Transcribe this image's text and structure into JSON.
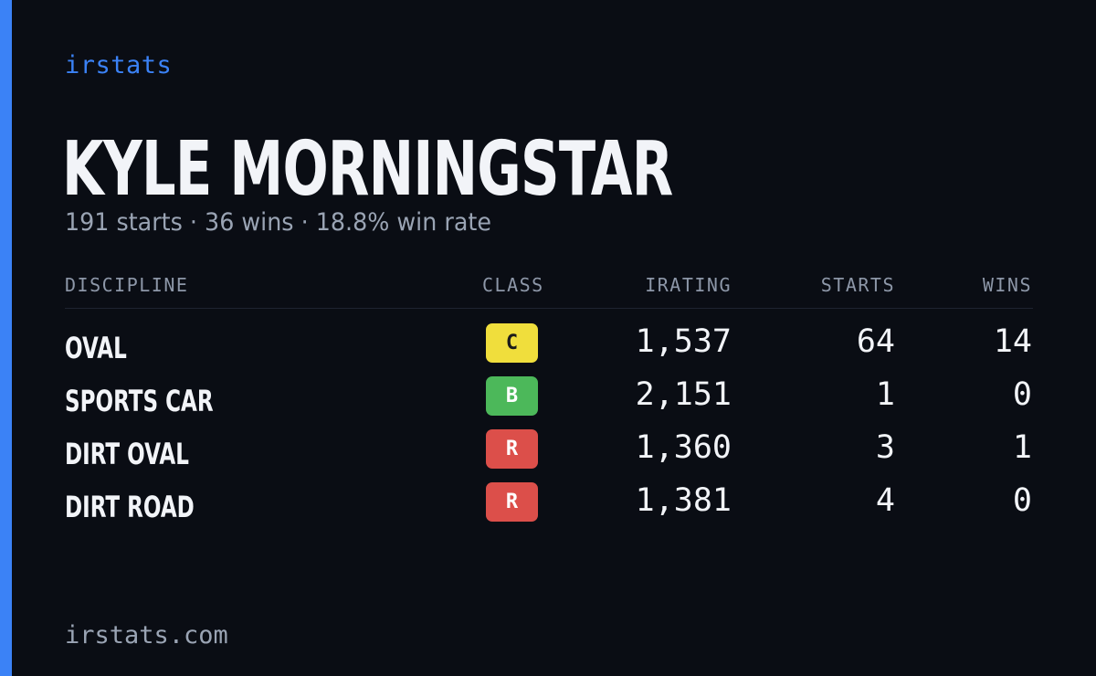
{
  "brand": "irstats",
  "driver": {
    "name": "KYLE MORNINGSTAR",
    "summary": "191 starts · 36 wins · 18.8% win rate"
  },
  "table": {
    "headers": {
      "discipline": "DISCIPLINE",
      "class": "CLASS",
      "irating": "IRATING",
      "starts": "STARTS",
      "wins": "WINS"
    },
    "rows": [
      {
        "discipline": "OVAL",
        "class": "C",
        "class_color": "#f0de3c",
        "class_text_color": "#1a1a1a",
        "irating": "1,537",
        "starts": "64",
        "wins": "14"
      },
      {
        "discipline": "SPORTS CAR",
        "class": "B",
        "class_color": "#4cb85a",
        "class_text_color": "#ffffff",
        "irating": "2,151",
        "starts": "1",
        "wins": "0"
      },
      {
        "discipline": "DIRT OVAL",
        "class": "R",
        "class_color": "#dc4f4a",
        "class_text_color": "#ffffff",
        "irating": "1,360",
        "starts": "3",
        "wins": "1"
      },
      {
        "discipline": "DIRT ROAD",
        "class": "R",
        "class_color": "#dc4f4a",
        "class_text_color": "#ffffff",
        "irating": "1,381",
        "starts": "4",
        "wins": "0"
      }
    ]
  },
  "footer": "irstats.com",
  "colors": {
    "accent": "#3b82f6",
    "background": "#0a0d14"
  }
}
